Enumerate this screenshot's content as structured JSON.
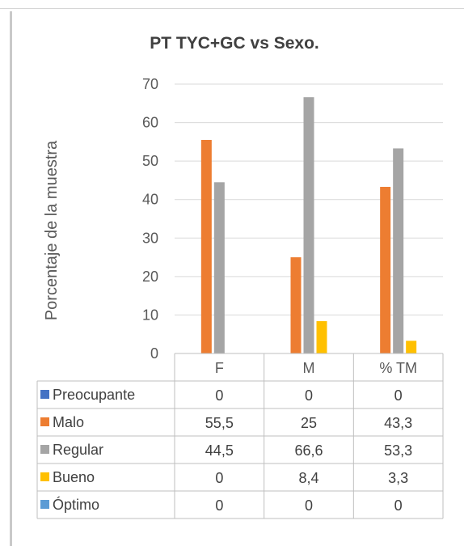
{
  "chart_data": {
    "type": "bar",
    "title": "PT TYC+GC vs Sexo.",
    "xlabel": "",
    "ylabel": "Porcentaje de la muestra",
    "ylim": [
      0,
      70
    ],
    "yticks": [
      0,
      10,
      20,
      30,
      40,
      50,
      60,
      70
    ],
    "grid": true,
    "legend": "data table below chart",
    "categories": [
      "F",
      "M",
      "% TM"
    ],
    "series": [
      {
        "name": "Preocupante",
        "values": [
          0,
          0,
          0
        ],
        "labels": [
          "0",
          "0",
          "0"
        ],
        "color": "#4472c4"
      },
      {
        "name": "Malo",
        "values": [
          55.5,
          25,
          43.3
        ],
        "labels": [
          "55,5",
          "25",
          "43,3"
        ],
        "color": "#ed7d31"
      },
      {
        "name": "Regular",
        "values": [
          44.5,
          66.6,
          53.3
        ],
        "labels": [
          "44,5",
          "66,6",
          "53,3"
        ],
        "color": "#a5a5a5"
      },
      {
        "name": "Bueno",
        "values": [
          0,
          8.4,
          3.3
        ],
        "labels": [
          "0",
          "8,4",
          "3,3"
        ],
        "color": "#ffc000"
      },
      {
        "name": "Óptimo",
        "values": [
          0,
          0,
          0
        ],
        "labels": [
          "0",
          "0",
          "0"
        ],
        "color": "#5b9bd5"
      }
    ]
  }
}
